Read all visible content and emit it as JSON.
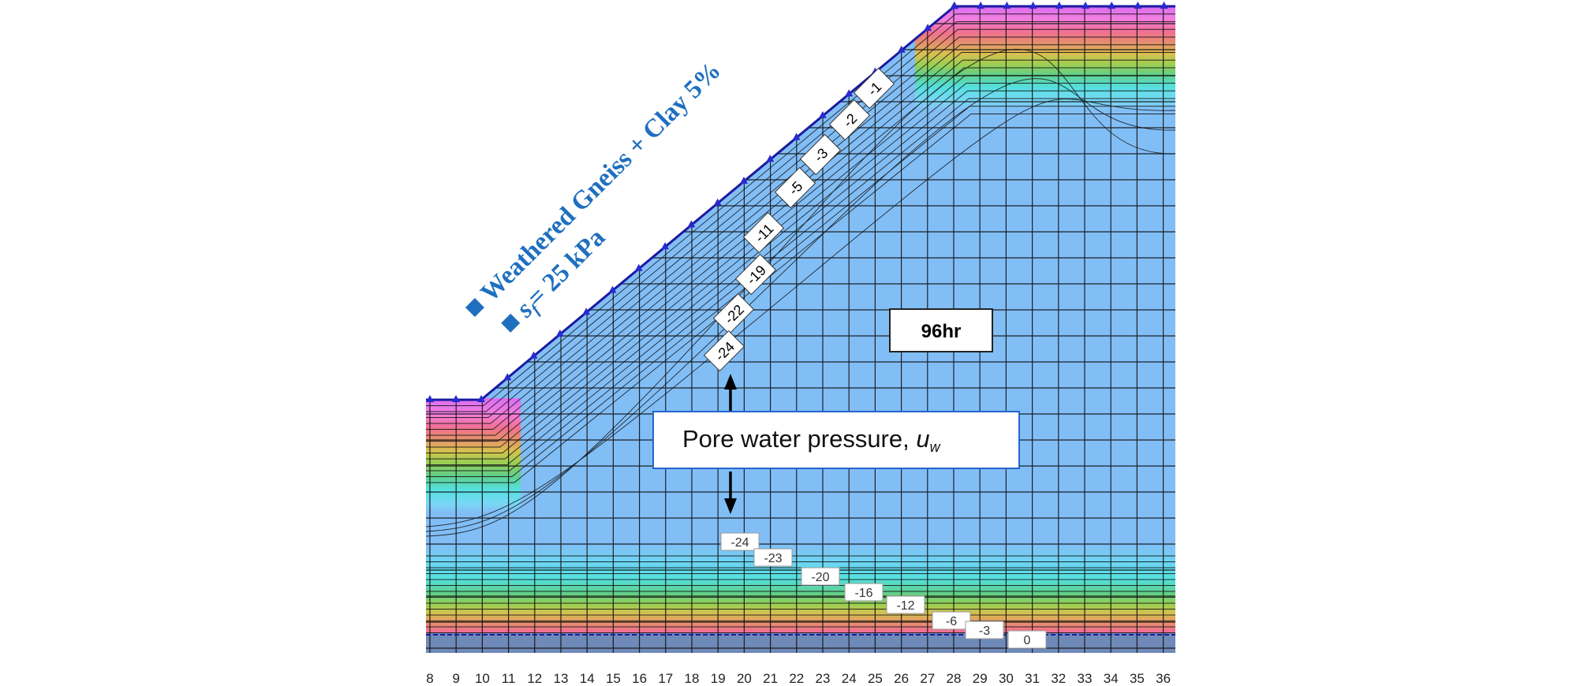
{
  "figure": {
    "legend": {
      "material": "Weathered Gneiss + Clay 5%",
      "strength_symbol": "s",
      "strength_sub": "f",
      "strength_value": "= 25 kPa"
    },
    "time_label": "96hr",
    "pore_label": "Pore water pressure, ",
    "pore_symbol": "u",
    "pore_symbol_sub": "w",
    "x_ticks": [
      "8",
      "9",
      "10",
      "11",
      "12",
      "13",
      "14",
      "15",
      "16",
      "17",
      "18",
      "19",
      "20",
      "21",
      "22",
      "23",
      "24",
      "25",
      "26",
      "27",
      "28",
      "29",
      "30",
      "31",
      "32",
      "33",
      "34",
      "35",
      "36"
    ],
    "slope_contour_labels": [
      "-1",
      "-2",
      "-3",
      "-5",
      "-11",
      "-19",
      "-22",
      "-24"
    ],
    "bottom_contour_labels": [
      "-24",
      "-23",
      "-20",
      "-16",
      "-12",
      "-6",
      "-3",
      "0"
    ],
    "colors": {
      "mesh_lines": "#111111",
      "boundary": "#1a1aa0",
      "saturated_zone": "#7fb2f5",
      "legend_text": "#1f6fc0"
    }
  }
}
